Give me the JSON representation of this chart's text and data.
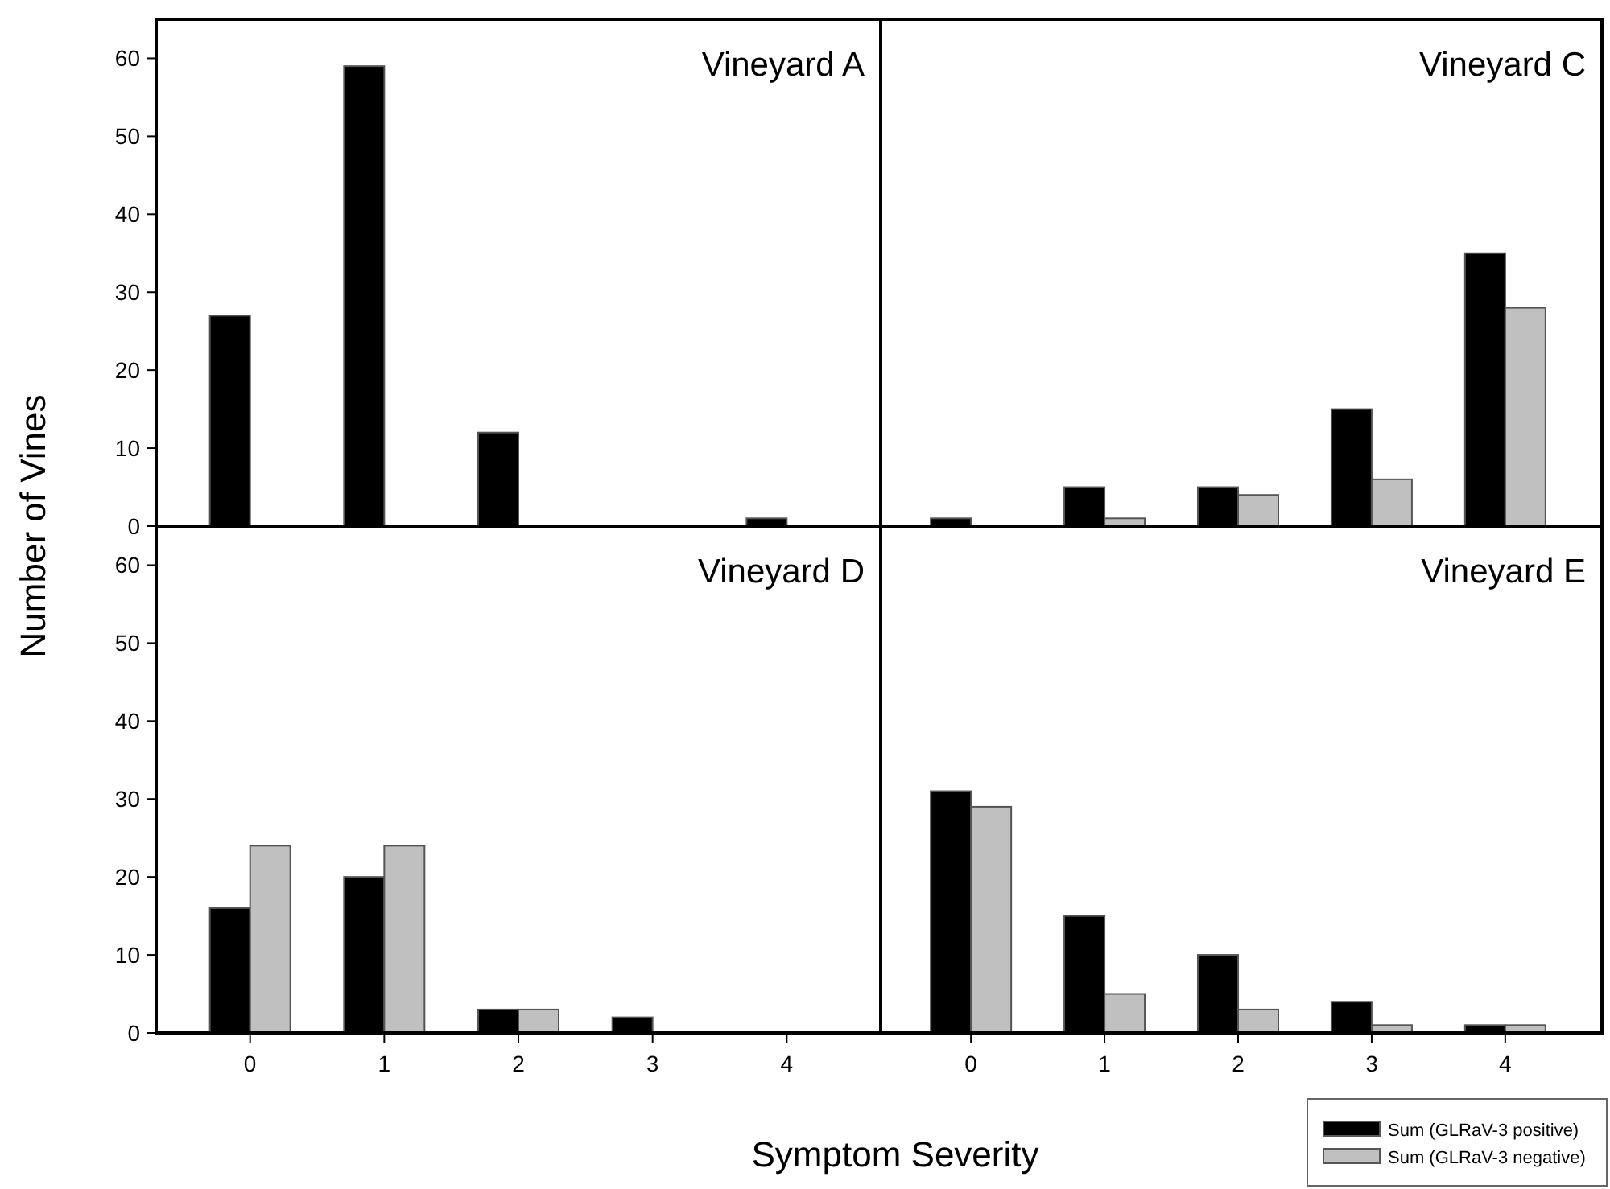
{
  "chart_data": [
    {
      "type": "bar",
      "title": "Vineyard A",
      "ylabel": "Number of Vines",
      "categories": [
        "0",
        "1",
        "2",
        "3",
        "4"
      ],
      "ylim": [
        0,
        65
      ],
      "yticks": [
        0,
        10,
        20,
        30,
        40,
        50,
        60
      ],
      "tick_labels": "y",
      "series": [
        {
          "color": "#000000",
          "values": [
            27,
            59,
            12,
            0,
            1
          ]
        },
        {
          "color": "#c0c0c0",
          "values": [
            0,
            0,
            0,
            0,
            0
          ]
        }
      ]
    },
    {
      "type": "bar",
      "title": "Vineyard C",
      "categories": [
        "0",
        "1",
        "2",
        "3",
        "4"
      ],
      "ylim": [
        0,
        65
      ],
      "yticks": [
        0,
        10,
        20,
        30,
        40,
        50,
        60
      ],
      "tick_labels": false,
      "series": [
        {
          "color": "#000000",
          "values": [
            1,
            5,
            5,
            15,
            35
          ]
        },
        {
          "color": "#c0c0c0",
          "values": [
            0,
            1,
            4,
            6,
            28
          ]
        }
      ]
    },
    {
      "type": "bar",
      "title": "Vineyard D",
      "xlabel": "Symptom Severity",
      "categories": [
        "0",
        "1",
        "2",
        "3",
        "4"
      ],
      "ylim": [
        0,
        65
      ],
      "yticks": [
        0,
        10,
        20,
        30,
        40,
        50,
        60
      ],
      "series": [
        {
          "color": "#000000",
          "values": [
            16,
            20,
            3,
            2,
            0
          ]
        },
        {
          "color": "#c0c0c0",
          "values": [
            24,
            24,
            3,
            0,
            0
          ]
        }
      ]
    },
    {
      "type": "bar",
      "title": "Vineyard E",
      "categories": [
        "0",
        "1",
        "2",
        "3",
        "4"
      ],
      "ylim": [
        0,
        65
      ],
      "yticks": [
        0,
        10,
        20,
        30,
        40,
        50,
        60
      ],
      "tick_labels": "x",
      "legend": "bottom right",
      "series": [
        {
          "name": "Sum (GLRaV-3 positive)",
          "color": "#000000",
          "values": [
            31,
            15,
            10,
            4,
            1
          ]
        },
        {
          "name": "Sum (GLRaV-3 negative)",
          "color": "#c0c0c0",
          "values": [
            29,
            5,
            3,
            1,
            1
          ]
        }
      ]
    }
  ]
}
